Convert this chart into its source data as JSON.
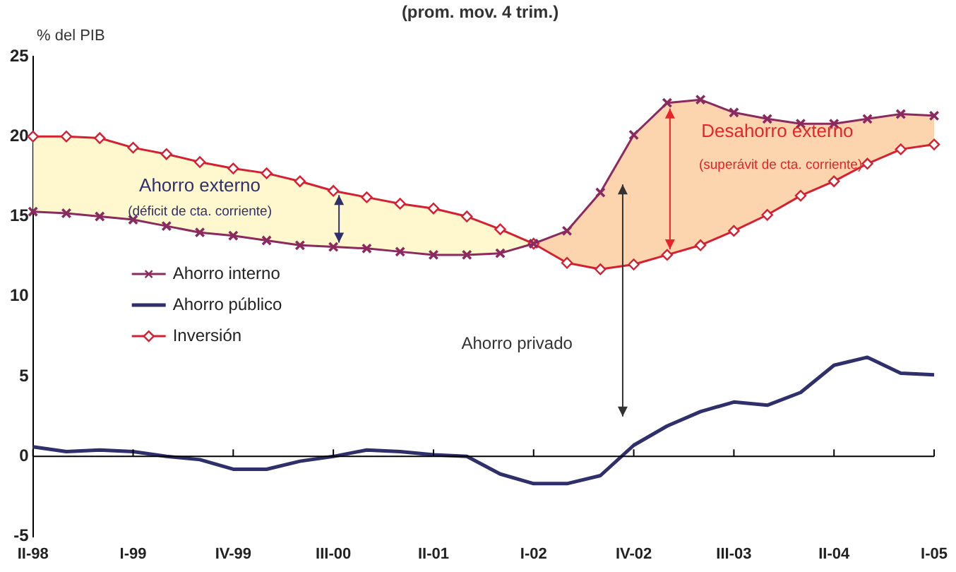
{
  "chart_data": {
    "type": "line",
    "title": "(prom. mov. 4 trim.)",
    "ylabel": "% del PIB",
    "categories": [
      "II-98",
      null,
      null,
      "I-99",
      null,
      null,
      "IV-99",
      null,
      null,
      "III-00",
      null,
      null,
      "II-01",
      null,
      null,
      "I-02",
      null,
      null,
      "IV-02",
      null,
      null,
      "III-03",
      null,
      null,
      "II-04",
      null,
      null,
      "I-05"
    ],
    "series": [
      {
        "name": "Ahorro interno",
        "color": "#8b2a5e",
        "marker": "cross",
        "values": [
          15.3,
          15.2,
          15.0,
          14.8,
          14.4,
          14.0,
          13.8,
          13.5,
          13.2,
          13.1,
          13.0,
          12.8,
          12.6,
          12.6,
          12.7,
          13.3,
          14.1,
          16.5,
          20.1,
          22.1,
          22.3,
          21.5,
          21.1,
          20.8,
          20.8,
          21.1,
          21.4,
          21.3
        ]
      },
      {
        "name": "Ahorro público",
        "color": "#2e2f6b",
        "marker": "none",
        "values": [
          0.6,
          0.3,
          0.4,
          0.3,
          0.0,
          -0.2,
          -0.8,
          -0.8,
          -0.3,
          0.0,
          0.4,
          0.3,
          0.1,
          0.0,
          -1.1,
          -1.7,
          -1.7,
          -1.2,
          0.7,
          1.9,
          2.8,
          3.4,
          3.2,
          4.0,
          5.7,
          6.2,
          5.2,
          5.1
        ]
      },
      {
        "name": "Inversión",
        "color": "#d42030",
        "marker": "diamond",
        "values": [
          20.0,
          20.0,
          19.9,
          19.3,
          18.9,
          18.4,
          18.0,
          17.7,
          17.2,
          16.6,
          16.2,
          15.8,
          15.5,
          15.0,
          14.2,
          13.3,
          12.1,
          11.7,
          12.0,
          12.6,
          13.2,
          14.1,
          15.1,
          16.3,
          17.2,
          18.3,
          19.2,
          19.5
        ],
        "lower": [
          15.3,
          15.2,
          15.0,
          14.8,
          14.4,
          14.0,
          13.8,
          13.5,
          13.2,
          13.1,
          13.0,
          12.8,
          12.6,
          12.6,
          12.7,
          13.3,
          14.1,
          16.5,
          20.1,
          22.1,
          22.3,
          21.5,
          21.1,
          20.8,
          20.8,
          21.1,
          21.4,
          21.3
        ],
        "upper": [
          20.0,
          20.0,
          19.9,
          19.3,
          18.9,
          18.4,
          18.0,
          17.7,
          17.2,
          16.6,
          16.2,
          15.8,
          15.5,
          15.0,
          14.2,
          13.3,
          12.1,
          11.7,
          12.0,
          12.6,
          13.2,
          14.1,
          15.1,
          16.3,
          17.2,
          18.3,
          19.2,
          19.5
        ]
      }
    ],
    "ref_lines": [
      {
        "axis": "y",
        "value": 0,
        "color": "#000000"
      }
    ],
    "ylim": [
      -5,
      25
    ],
    "yticks": [
      -5,
      0,
      5,
      10,
      15,
      20,
      25
    ],
    "grid": false,
    "legend": "left",
    "annotations": [
      "Ahorro externo",
      "(déficit de cta. corriente)",
      "Desahorro externo",
      "(superávit de cta. corriente)",
      "Ahorro privado"
    ]
  }
}
